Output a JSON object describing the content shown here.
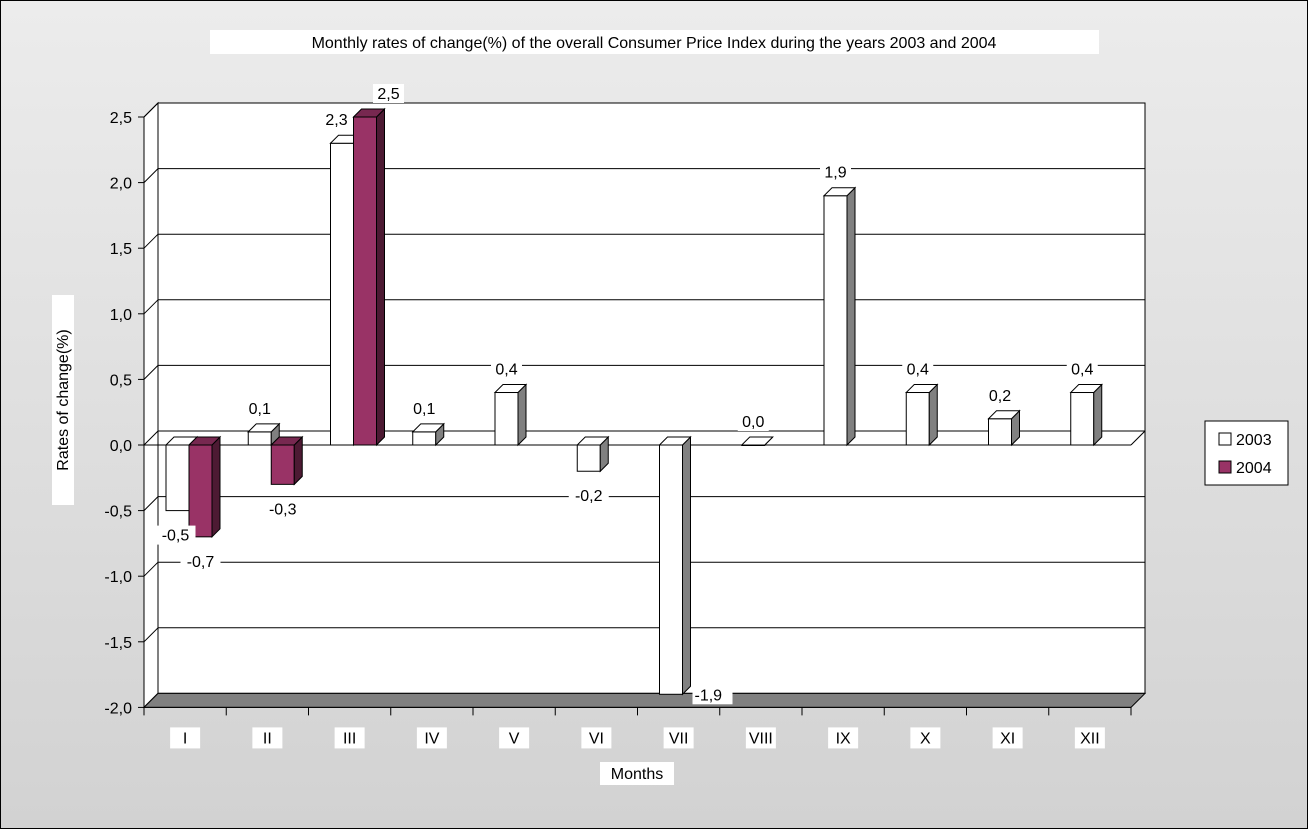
{
  "chart_data": {
    "type": "bar",
    "title": "Monthly rates of change(%) of the overall Consumer Price Index during the years 2003 and 2004",
    "xlabel": "Months",
    "ylabel": "Rates of change(%)",
    "categories": [
      "I",
      "II",
      "III",
      "IV",
      "V",
      "VI",
      "VII",
      "VIII",
      "IX",
      "X",
      "XI",
      "XII"
    ],
    "ylim": [
      -2.0,
      2.5
    ],
    "yticks": [
      2.5,
      2.0,
      1.5,
      1.0,
      0.5,
      0.0,
      -0.5,
      -1.0,
      -1.5,
      -2.0
    ],
    "ytick_labels": [
      "2,5",
      "2,0",
      "1,5",
      "1,0",
      "0,5",
      "0,0",
      "-0,5",
      "-1,0",
      "-1,5",
      "-2,0"
    ],
    "grid": true,
    "legend_position": "right",
    "series": [
      {
        "name": "2003",
        "color": "#ffffff",
        "values": [
          -0.5,
          0.1,
          2.3,
          0.1,
          0.4,
          -0.2,
          -1.9,
          0.0,
          1.9,
          0.4,
          0.2,
          0.4
        ],
        "labels": [
          "-0,5",
          "0,1",
          "2,3",
          "0,1",
          "0,4",
          "-0,2",
          "-1,9",
          "0,0",
          "1,9",
          "0,4",
          "0,2",
          "0,4"
        ]
      },
      {
        "name": "2004",
        "color": "#993366",
        "values": [
          -0.7,
          -0.3,
          2.5,
          null,
          null,
          null,
          null,
          null,
          null,
          null,
          null,
          null
        ],
        "labels": [
          "-0,7",
          "-0,3",
          "2,5",
          null,
          null,
          null,
          null,
          null,
          null,
          null,
          null,
          null
        ]
      }
    ]
  }
}
